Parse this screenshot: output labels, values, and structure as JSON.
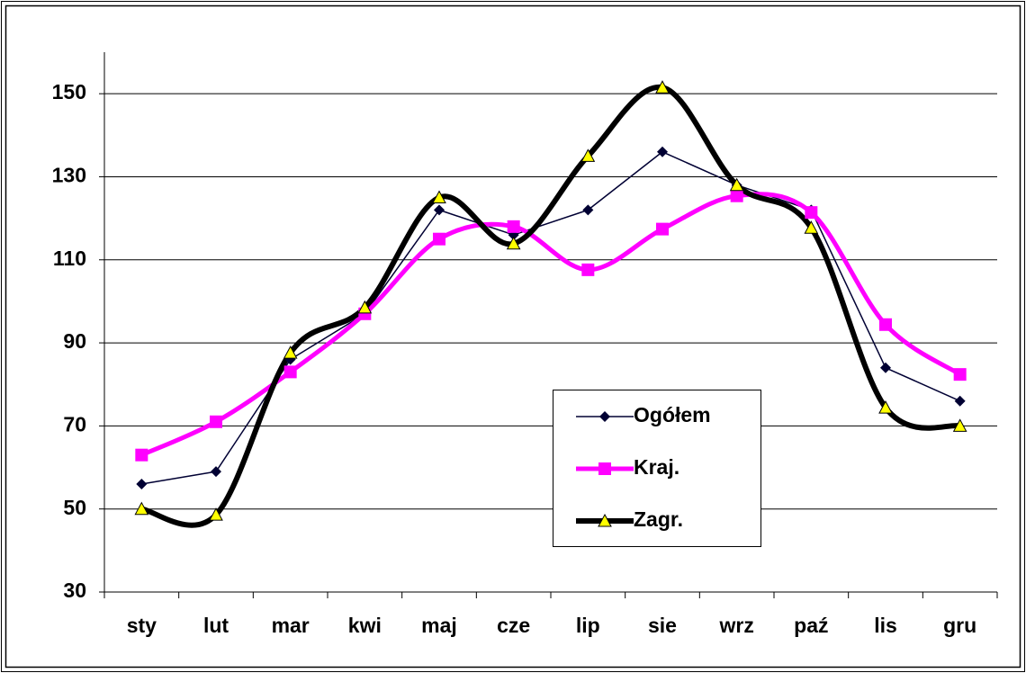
{
  "chart_data": {
    "type": "line",
    "categories": [
      "sty",
      "lut",
      "mar",
      "kwi",
      "maj",
      "cze",
      "lip",
      "sie",
      "wrz",
      "paź",
      "lis",
      "gru"
    ],
    "series": [
      {
        "name": "Ogółem",
        "color": "#000033",
        "marker": "diamond",
        "smooth": false,
        "values": [
          56,
          59,
          86,
          97,
          122,
          116,
          122,
          136,
          128,
          122,
          84,
          76
        ]
      },
      {
        "name": "Kraj.",
        "color": "#ff00ff",
        "marker": "square",
        "smooth": true,
        "values": [
          63,
          71,
          83,
          97,
          115,
          118,
          107.6,
          117.4,
          125.4,
          121.4,
          94.4,
          82.4
        ]
      },
      {
        "name": "Zagr.",
        "color": "#000000",
        "marker": "triangle",
        "marker_color": "#ffff00",
        "smooth": true,
        "values": [
          50,
          48.6,
          87.6,
          98.5,
          125,
          113.9,
          135,
          151.5,
          128,
          117.7,
          74.4,
          70
        ]
      }
    ],
    "ylim": [
      30,
      160
    ],
    "yticks": [
      30,
      50,
      70,
      90,
      110,
      130,
      150
    ],
    "grid": true
  }
}
